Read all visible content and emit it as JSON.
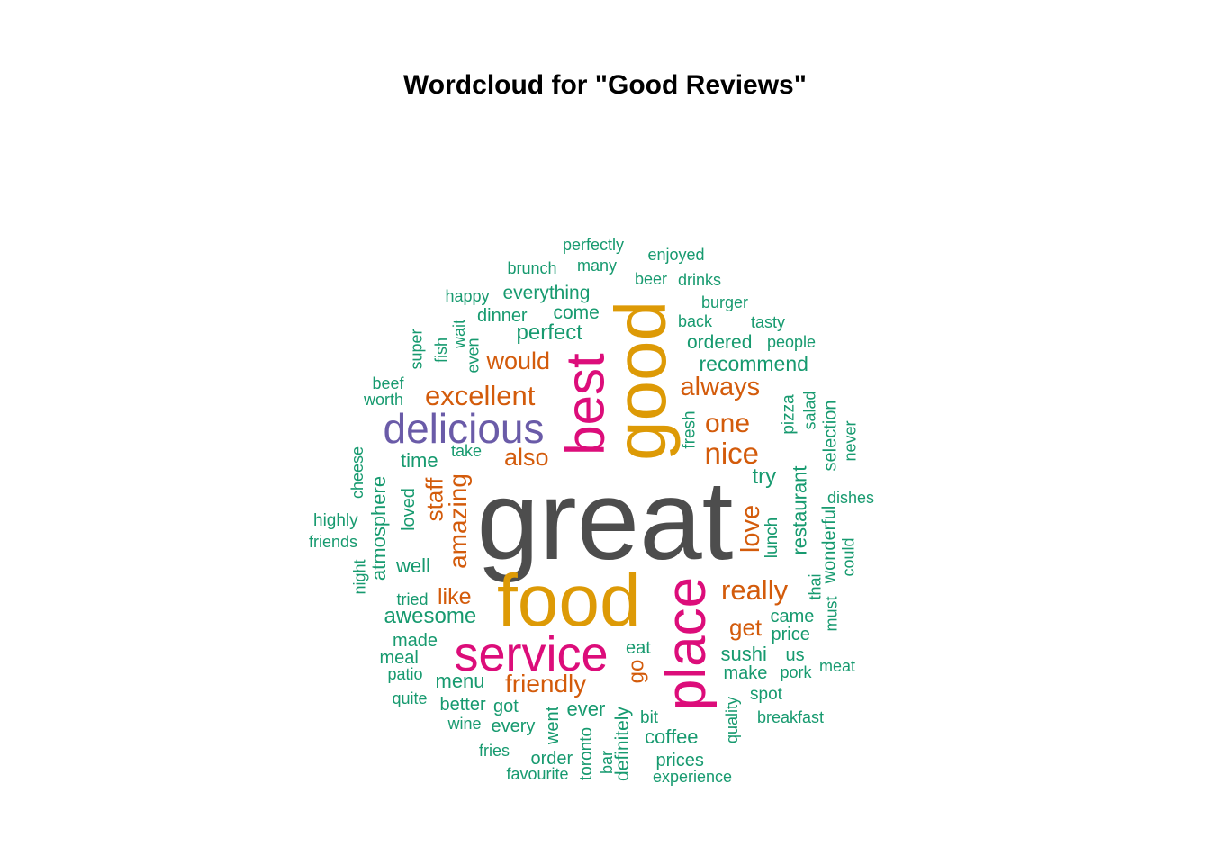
{
  "title": "Wordcloud for \"Good Reviews\"",
  "colors": {
    "gray": "#4d4d4d",
    "gold": "#dd9a06",
    "magenta": "#dc0d7a",
    "purple": "#6a5ba8",
    "orange": "#d35b0b",
    "teal": "#179a6f"
  },
  "words": [
    {
      "text": "great",
      "color": "gray"
    },
    {
      "text": "food",
      "color": "gold"
    },
    {
      "text": "good",
      "color": "gold"
    },
    {
      "text": "service",
      "color": "magenta"
    },
    {
      "text": "place",
      "color": "magenta"
    },
    {
      "text": "best",
      "color": "magenta"
    },
    {
      "text": "delicious",
      "color": "purple"
    },
    {
      "text": "excellent",
      "color": "orange"
    },
    {
      "text": "nice",
      "color": "orange"
    },
    {
      "text": "one",
      "color": "orange"
    },
    {
      "text": "always",
      "color": "orange"
    },
    {
      "text": "would",
      "color": "orange"
    },
    {
      "text": "also",
      "color": "orange"
    },
    {
      "text": "amazing",
      "color": "orange"
    },
    {
      "text": "staff",
      "color": "orange"
    },
    {
      "text": "love",
      "color": "orange"
    },
    {
      "text": "really",
      "color": "orange"
    },
    {
      "text": "like",
      "color": "orange"
    },
    {
      "text": "get",
      "color": "orange"
    },
    {
      "text": "go",
      "color": "orange"
    },
    {
      "text": "friendly",
      "color": "orange"
    },
    {
      "text": "perfectly",
      "color": "teal"
    },
    {
      "text": "enjoyed",
      "color": "teal"
    },
    {
      "text": "brunch",
      "color": "teal"
    },
    {
      "text": "many",
      "color": "teal"
    },
    {
      "text": "beer",
      "color": "teal"
    },
    {
      "text": "drinks",
      "color": "teal"
    },
    {
      "text": "happy",
      "color": "teal"
    },
    {
      "text": "everything",
      "color": "teal"
    },
    {
      "text": "burger",
      "color": "teal"
    },
    {
      "text": "dinner",
      "color": "teal"
    },
    {
      "text": "come",
      "color": "teal"
    },
    {
      "text": "back",
      "color": "teal"
    },
    {
      "text": "tasty",
      "color": "teal"
    },
    {
      "text": "perfect",
      "color": "teal"
    },
    {
      "text": "ordered",
      "color": "teal"
    },
    {
      "text": "people",
      "color": "teal"
    },
    {
      "text": "super",
      "color": "teal"
    },
    {
      "text": "fish",
      "color": "teal"
    },
    {
      "text": "wait",
      "color": "teal"
    },
    {
      "text": "even",
      "color": "teal"
    },
    {
      "text": "recommend",
      "color": "teal"
    },
    {
      "text": "beef",
      "color": "teal"
    },
    {
      "text": "worth",
      "color": "teal"
    },
    {
      "text": "pizza",
      "color": "teal"
    },
    {
      "text": "salad",
      "color": "teal"
    },
    {
      "text": "fresh",
      "color": "teal"
    },
    {
      "text": "selection",
      "color": "teal"
    },
    {
      "text": "never",
      "color": "teal"
    },
    {
      "text": "take",
      "color": "teal"
    },
    {
      "text": "time",
      "color": "teal"
    },
    {
      "text": "cheese",
      "color": "teal"
    },
    {
      "text": "try",
      "color": "teal"
    },
    {
      "text": "restaurant",
      "color": "teal"
    },
    {
      "text": "dishes",
      "color": "teal"
    },
    {
      "text": "atmosphere",
      "color": "teal"
    },
    {
      "text": "loved",
      "color": "teal"
    },
    {
      "text": "highly",
      "color": "teal"
    },
    {
      "text": "friends",
      "color": "teal"
    },
    {
      "text": "lunch",
      "color": "teal"
    },
    {
      "text": "wonderful",
      "color": "teal"
    },
    {
      "text": "could",
      "color": "teal"
    },
    {
      "text": "night",
      "color": "teal"
    },
    {
      "text": "well",
      "color": "teal"
    },
    {
      "text": "thai",
      "color": "teal"
    },
    {
      "text": "must",
      "color": "teal"
    },
    {
      "text": "tried",
      "color": "teal"
    },
    {
      "text": "awesome",
      "color": "teal"
    },
    {
      "text": "came",
      "color": "teal"
    },
    {
      "text": "price",
      "color": "teal"
    },
    {
      "text": "made",
      "color": "teal"
    },
    {
      "text": "eat",
      "color": "teal"
    },
    {
      "text": "meal",
      "color": "teal"
    },
    {
      "text": "sushi",
      "color": "teal"
    },
    {
      "text": "us",
      "color": "teal"
    },
    {
      "text": "meat",
      "color": "teal"
    },
    {
      "text": "patio",
      "color": "teal"
    },
    {
      "text": "menu",
      "color": "teal"
    },
    {
      "text": "make",
      "color": "teal"
    },
    {
      "text": "pork",
      "color": "teal"
    },
    {
      "text": "quite",
      "color": "teal"
    },
    {
      "text": "better",
      "color": "teal"
    },
    {
      "text": "got",
      "color": "teal"
    },
    {
      "text": "ever",
      "color": "teal"
    },
    {
      "text": "spot",
      "color": "teal"
    },
    {
      "text": "wine",
      "color": "teal"
    },
    {
      "text": "every",
      "color": "teal"
    },
    {
      "text": "went",
      "color": "teal"
    },
    {
      "text": "definitely",
      "color": "teal"
    },
    {
      "text": "bit",
      "color": "teal"
    },
    {
      "text": "quality",
      "color": "teal"
    },
    {
      "text": "breakfast",
      "color": "teal"
    },
    {
      "text": "fries",
      "color": "teal"
    },
    {
      "text": "toronto",
      "color": "teal"
    },
    {
      "text": "bar",
      "color": "teal"
    },
    {
      "text": "coffee",
      "color": "teal"
    },
    {
      "text": "order",
      "color": "teal"
    },
    {
      "text": "prices",
      "color": "teal"
    },
    {
      "text": "favourite",
      "color": "teal"
    },
    {
      "text": "experience",
      "color": "teal"
    }
  ]
}
